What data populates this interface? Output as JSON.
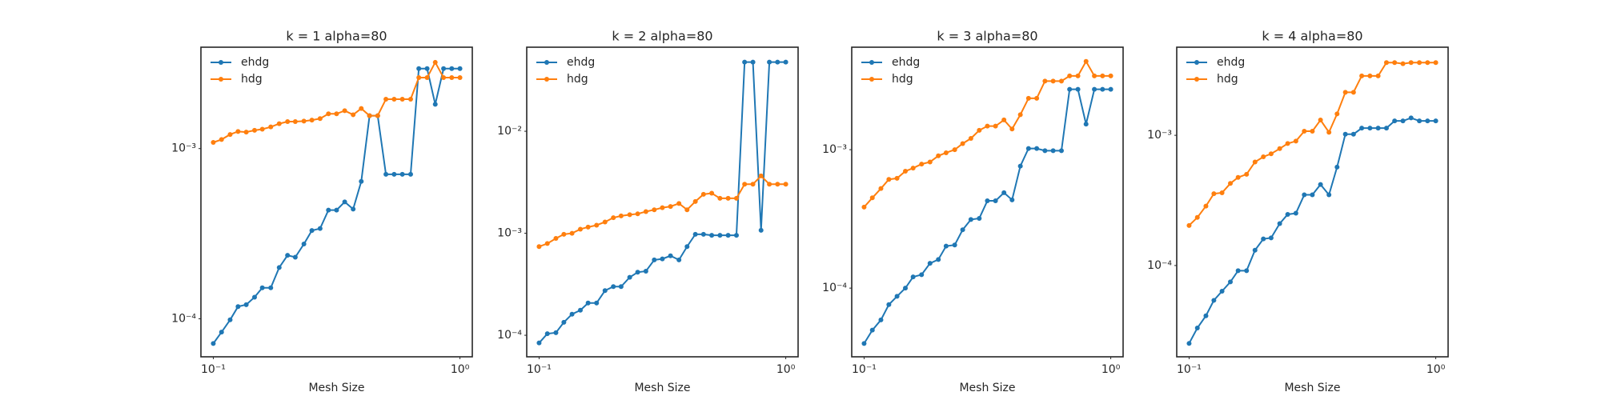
{
  "chart_data": [
    {
      "type": "line",
      "title": "k = 1 alpha=80",
      "xlabel": "Mesh Size",
      "log_x": true,
      "log_y": true,
      "legend": "upper left",
      "x": [
        0.1,
        0.108,
        0.117,
        0.126,
        0.136,
        0.147,
        0.158,
        0.171,
        0.185,
        0.2,
        0.215,
        0.233,
        0.251,
        0.271,
        0.293,
        0.316,
        0.341,
        0.369,
        0.398,
        0.43,
        0.464,
        0.501,
        0.541,
        0.584,
        0.631,
        0.681,
        0.736,
        0.794,
        0.858,
        0.926,
        1.0
      ],
      "xlim": [
        0.0891,
        1.122
      ],
      "xticks": [
        {
          "value": 0.1,
          "label": "10⁻¹"
        },
        {
          "value": 1,
          "label": "10⁰"
        }
      ],
      "ylim": [
        5.98e-05,
        0.00394
      ],
      "yticks": [
        {
          "value": 0.0001,
          "label": "10⁻⁴"
        },
        {
          "value": 0.001,
          "label": "10⁻³"
        }
      ],
      "series": [
        {
          "name": "ehdg",
          "color": "#1f77b4",
          "values": [
            7.16e-05,
            8.35e-05,
            9.86e-05,
            0.000118,
            0.000121,
            0.000134,
            0.000152,
            0.000152,
            0.0002,
            0.000236,
            0.00023,
            0.000275,
            0.00033,
            0.000339,
            0.000435,
            0.000435,
            0.000486,
            0.000441,
            0.000641,
            0.00156,
            0.00156,
            0.000706,
            0.000706,
            0.000706,
            0.000706,
            0.00295,
            0.00295,
            0.00182,
            0.00295,
            0.00295,
            0.00295
          ]
        },
        {
          "name": "hdg",
          "color": "#ff7f0e",
          "values": [
            0.001087,
            0.00113,
            0.00121,
            0.00126,
            0.00125,
            0.00128,
            0.0013,
            0.00134,
            0.0014,
            0.00144,
            0.00144,
            0.00145,
            0.00147,
            0.0015,
            0.0016,
            0.0016,
            0.00167,
            0.00158,
            0.00172,
            0.00156,
            0.00156,
            0.00195,
            0.00195,
            0.00195,
            0.00195,
            0.00261,
            0.00261,
            0.00321,
            0.00261,
            0.00261,
            0.00261
          ]
        }
      ]
    },
    {
      "type": "line",
      "title": "k = 2 alpha=80",
      "xlabel": "Mesh Size",
      "log_x": true,
      "log_y": true,
      "legend": "upper left",
      "x": [
        0.1,
        0.108,
        0.117,
        0.126,
        0.136,
        0.147,
        0.158,
        0.171,
        0.185,
        0.2,
        0.215,
        0.233,
        0.251,
        0.271,
        0.293,
        0.316,
        0.341,
        0.369,
        0.398,
        0.43,
        0.464,
        0.501,
        0.541,
        0.584,
        0.631,
        0.681,
        0.736,
        0.794,
        0.858,
        0.926,
        1.0
      ],
      "xlim": [
        0.0891,
        1.122
      ],
      "xticks": [
        {
          "value": 0.1,
          "label": "10⁻¹"
        },
        {
          "value": 1,
          "label": "10⁰"
        }
      ],
      "ylim": [
        6.15e-05,
        0.0667
      ],
      "yticks": [
        {
          "value": 0.0001,
          "label": "10⁻⁴"
        },
        {
          "value": 0.001,
          "label": "10⁻³"
        },
        {
          "value": 0.01,
          "label": "10⁻²"
        }
      ],
      "series": [
        {
          "name": "ehdg",
          "color": "#1f77b4",
          "values": [
            8.41e-05,
            0.0001035,
            0.000106,
            0.000134,
            0.000161,
            0.000176,
            0.000207,
            0.000207,
            0.000274,
            0.0003,
            0.0003,
            0.00037,
            0.000415,
            0.000425,
            0.000548,
            0.000561,
            0.000601,
            0.000548,
            0.00074,
            0.000977,
            0.000977,
            0.000955,
            0.000955,
            0.000955,
            0.000955,
            0.0476,
            0.0476,
            0.00107,
            0.0476,
            0.0476,
            0.0476
          ]
        },
        {
          "name": "hdg",
          "color": "#ff7f0e",
          "values": [
            0.00074,
            0.000793,
            0.000891,
            0.000977,
            0.001,
            0.001097,
            0.00115,
            0.0012,
            0.00129,
            0.00142,
            0.00148,
            0.00152,
            0.00155,
            0.00163,
            0.0017,
            0.00178,
            0.00183,
            0.00196,
            0.0017,
            0.00205,
            0.00241,
            0.00247,
            0.0022,
            0.0022,
            0.0022,
            0.00303,
            0.00303,
            0.00365,
            0.00303,
            0.00303,
            0.00303
          ]
        }
      ]
    },
    {
      "type": "line",
      "title": "k = 3 alpha=80",
      "xlabel": "Mesh Size",
      "log_x": true,
      "log_y": true,
      "legend": "upper left",
      "x": [
        0.1,
        0.108,
        0.117,
        0.126,
        0.136,
        0.147,
        0.158,
        0.171,
        0.185,
        0.2,
        0.215,
        0.233,
        0.251,
        0.271,
        0.293,
        0.316,
        0.341,
        0.369,
        0.398,
        0.43,
        0.464,
        0.501,
        0.541,
        0.584,
        0.631,
        0.681,
        0.736,
        0.794,
        0.858,
        0.926,
        1.0
      ],
      "xlim": [
        0.0891,
        1.122
      ],
      "xticks": [
        {
          "value": 0.1,
          "label": "10⁻¹"
        },
        {
          "value": 1,
          "label": "10⁰"
        }
      ],
      "ylim": [
        3.19e-05,
        0.0055
      ],
      "yticks": [
        {
          "value": 0.0001,
          "label": "10⁻⁴"
        },
        {
          "value": 0.001,
          "label": "10⁻³"
        }
      ],
      "series": [
        {
          "name": "ehdg",
          "color": "#1f77b4",
          "values": [
            3.98e-05,
            4.97e-05,
            5.89e-05,
            7.6e-05,
            8.72e-05,
            0.0001,
            0.0001205,
            0.000125,
            0.000151,
            0.000161,
            0.000201,
            0.000205,
            0.000264,
            0.000313,
            0.000319,
            0.000427,
            0.000427,
            0.000489,
            0.000434,
            0.000761,
            0.00102,
            0.00102,
            0.000983,
            0.000983,
            0.000983,
            0.00273,
            0.00273,
            0.00153,
            0.00273,
            0.00273,
            0.00273
          ]
        },
        {
          "name": "hdg",
          "color": "#ff7f0e",
          "values": [
            0.000385,
            0.000449,
            0.000524,
            0.00061,
            0.000621,
            0.000699,
            0.000736,
            0.000787,
            0.000815,
            0.000903,
            0.00095,
            0.001,
            0.001107,
            0.001206,
            0.00138,
            0.00148,
            0.00148,
            0.00164,
            0.00141,
            0.00179,
            0.00235,
            0.00235,
            0.00313,
            0.00313,
            0.00313,
            0.00341,
            0.00341,
            0.00434,
            0.00341,
            0.00341,
            0.00341
          ]
        }
      ]
    },
    {
      "type": "line",
      "title": "k = 4 alpha=80",
      "xlabel": "Mesh Size",
      "log_x": true,
      "log_y": true,
      "legend": "upper left",
      "x": [
        0.1,
        0.108,
        0.117,
        0.126,
        0.136,
        0.147,
        0.158,
        0.171,
        0.185,
        0.2,
        0.215,
        0.233,
        0.251,
        0.271,
        0.293,
        0.316,
        0.341,
        0.369,
        0.398,
        0.43,
        0.464,
        0.501,
        0.541,
        0.584,
        0.631,
        0.681,
        0.736,
        0.794,
        0.858,
        0.926,
        1.0
      ],
      "xlim": [
        0.0891,
        1.122
      ],
      "xticks": [
        {
          "value": 0.1,
          "label": "10⁻¹"
        },
        {
          "value": 1,
          "label": "10⁰"
        }
      ],
      "ylim": [
        1.99e-05,
        0.00475
      ],
      "yticks": [
        {
          "value": 0.0001,
          "label": "10⁻⁴"
        },
        {
          "value": 0.001,
          "label": "10⁻³"
        }
      ],
      "series": [
        {
          "name": "ehdg",
          "color": "#1f77b4",
          "values": [
            2.52e-05,
            3.31e-05,
            4.11e-05,
            5.4e-05,
            6.35e-05,
            7.48e-05,
            9.13e-05,
            9.13e-05,
            0.000131,
            0.00016,
            0.000163,
            0.00021,
            0.000247,
            0.000252,
            0.000349,
            0.000349,
            0.000419,
            0.000349,
            0.00057,
            0.00102,
            0.00102,
            0.001135,
            0.001135,
            0.001135,
            0.001135,
            0.00129,
            0.00129,
            0.00136,
            0.00129,
            0.00129,
            0.00129
          ]
        },
        {
          "name": "hdg",
          "color": "#ff7f0e",
          "values": [
            0.000203,
            0.000234,
            0.000286,
            0.000356,
            0.000362,
            0.000427,
            0.000475,
            0.000502,
            0.000624,
            0.000684,
            0.000721,
            0.00079,
            0.000865,
            0.000902,
            0.001075,
            0.001075,
            0.00131,
            0.001055,
            0.00146,
            0.00214,
            0.00214,
            0.00286,
            0.00286,
            0.00286,
            0.00362,
            0.00362,
            0.00355,
            0.00362,
            0.00362,
            0.00362,
            0.00362
          ]
        }
      ]
    }
  ]
}
